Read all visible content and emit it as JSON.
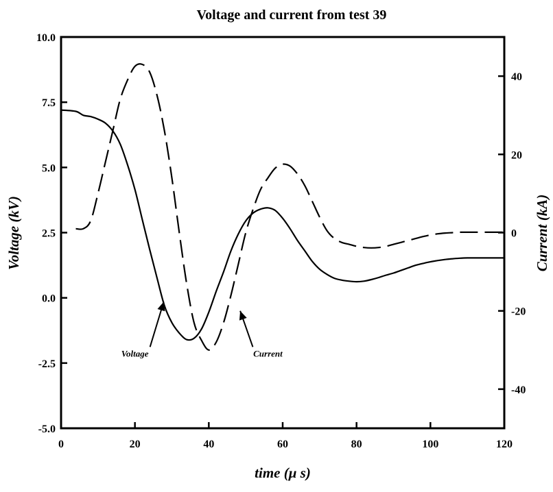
{
  "chart_data": {
    "type": "line",
    "title": "Voltage and current from test 39",
    "xlabel": "time (μ s)",
    "ylabel_left": "Voltage (kV)",
    "ylabel_right": "Current (kA)",
    "xlim": [
      0,
      120
    ],
    "ylim_left": [
      -5.0,
      10.0
    ],
    "ylim_right": [
      -50,
      50
    ],
    "x_ticks": [
      "0",
      "20",
      "40",
      "60",
      "80",
      "100",
      "120"
    ],
    "y_left_ticks": [
      "10.0",
      "7.5",
      "5.0",
      "2.5",
      "0.0",
      "-2.5",
      "-5.0"
    ],
    "y_right_ticks": [
      "40",
      "20",
      "0",
      "-20",
      "-40"
    ],
    "grid": false,
    "series": [
      {
        "name": "Voltage",
        "axis": "left",
        "style": "solid",
        "x": [
          0,
          4,
          6,
          8,
          10,
          12,
          14,
          16,
          18,
          20,
          22,
          24,
          26,
          28,
          30,
          32,
          34,
          36,
          38,
          40,
          42,
          44,
          46,
          48,
          50,
          52,
          54,
          56,
          58,
          60,
          62,
          64,
          66,
          68,
          70,
          72,
          74,
          76,
          78,
          80,
          82,
          84,
          86,
          88,
          90,
          92,
          94,
          96,
          98,
          100,
          102,
          104,
          106,
          108,
          110,
          115,
          120
        ],
        "y": [
          7.2,
          7.15,
          7.0,
          6.95,
          6.85,
          6.7,
          6.4,
          5.9,
          5.1,
          4.15,
          3.0,
          1.85,
          0.75,
          -0.3,
          -0.95,
          -1.35,
          -1.6,
          -1.55,
          -1.2,
          -0.55,
          0.25,
          1.0,
          1.8,
          2.45,
          2.95,
          3.25,
          3.4,
          3.45,
          3.35,
          3.05,
          2.65,
          2.2,
          1.8,
          1.4,
          1.1,
          0.9,
          0.75,
          0.68,
          0.64,
          0.62,
          0.64,
          0.7,
          0.78,
          0.87,
          0.95,
          1.05,
          1.15,
          1.25,
          1.32,
          1.38,
          1.43,
          1.47,
          1.5,
          1.52,
          1.53,
          1.53,
          1.53
        ]
      },
      {
        "name": "Current",
        "axis": "right",
        "style": "dashed",
        "x": [
          4,
          6,
          8,
          10,
          12,
          14,
          16,
          18,
          20,
          22,
          24,
          26,
          28,
          30,
          32,
          34,
          36,
          38,
          40,
          42,
          44,
          46,
          48,
          50,
          52,
          54,
          56,
          58,
          60,
          62,
          64,
          66,
          68,
          70,
          72,
          74,
          76,
          78,
          80,
          82,
          84,
          86,
          88,
          90,
          92,
          94,
          96,
          98,
          100,
          102,
          104,
          106,
          108,
          110,
          115,
          120
        ],
        "y": [
          1,
          1,
          3,
          10,
          18,
          26,
          34,
          39,
          42.5,
          43,
          41,
          35,
          26,
          14,
          0,
          -13,
          -23,
          -27.5,
          -30,
          -28,
          -23,
          -16,
          -8,
          0,
          6,
          11,
          14,
          16.5,
          17.5,
          17,
          15,
          12,
          8,
          4,
          0.5,
          -1.5,
          -2.5,
          -3,
          -3.5,
          -3.8,
          -3.9,
          -3.8,
          -3.5,
          -3,
          -2.5,
          -2,
          -1.5,
          -1,
          -0.6,
          -0.3,
          -0.1,
          0,
          0.1,
          0.1,
          0.1,
          0.1
        ]
      }
    ],
    "annotations": [
      {
        "text": "Voltage",
        "text_x": 20,
        "text_y": -2.25,
        "arrow_to_x": 27.8,
        "arrow_to_y": -0.15
      },
      {
        "text": "Current",
        "text_x": 56,
        "text_y": -2.25,
        "arrow_to_x": 48.5,
        "arrow_to_y": -0.5
      }
    ]
  }
}
